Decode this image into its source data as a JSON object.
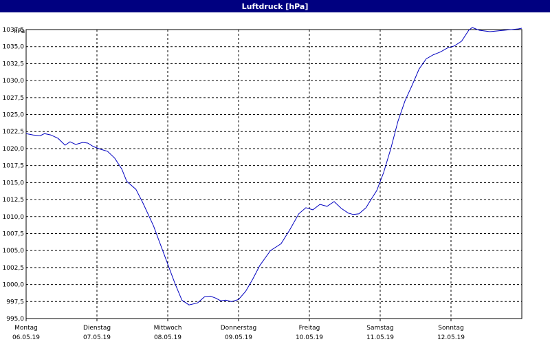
{
  "window": {
    "title": "Luftdruck [hPa]"
  },
  "chart_data": {
    "type": "line",
    "title": "Luftdruck [hPa]",
    "ylabel": "hPa",
    "xlabel": "",
    "ylim": [
      995.0,
      1037.5
    ],
    "yticks": [
      "995,0",
      "997,5",
      "1000,0",
      "1002,5",
      "1005,0",
      "1007,5",
      "1010,0",
      "1012,5",
      "1015,0",
      "1017,5",
      "1020,0",
      "1022,5",
      "1025,0",
      "1027,5",
      "1030,0",
      "1032,5",
      "1035,0",
      "1037,5"
    ],
    "xlim": [
      0,
      7
    ],
    "x_ticks": [
      {
        "day": "Montag",
        "date": "06.05.19"
      },
      {
        "day": "Dienstag",
        "date": "07.05.19"
      },
      {
        "day": "Mittwoch",
        "date": "08.05.19"
      },
      {
        "day": "Donnerstag",
        "date": "09.05.19"
      },
      {
        "day": "Freitag",
        "date": "10.05.19"
      },
      {
        "day": "Samstag",
        "date": "11.05.19"
      },
      {
        "day": "Sonntag",
        "date": "12.05.19"
      }
    ],
    "grid": true,
    "line_color": "#0000c0",
    "series": [
      {
        "x": [
          0.0,
          0.1,
          0.2,
          0.26,
          0.35,
          0.45,
          0.55,
          0.62,
          0.7,
          0.8,
          0.87,
          0.95,
          1.05,
          1.15,
          1.25,
          1.35,
          1.42,
          1.55,
          1.65,
          1.8,
          1.9,
          2.0,
          2.1,
          2.2,
          2.3,
          2.42,
          2.52,
          2.6,
          2.68,
          2.75,
          2.82,
          2.9,
          3.0,
          3.1,
          3.2,
          3.3,
          3.45,
          3.6,
          3.72,
          3.85,
          3.95,
          4.05,
          4.15,
          4.25,
          4.35,
          4.45,
          4.55,
          4.62,
          4.7,
          4.8,
          4.87,
          4.95,
          5.05,
          5.15,
          5.25,
          5.35,
          5.45,
          5.55,
          5.65,
          5.75,
          5.85,
          5.95,
          6.05,
          6.15,
          6.25,
          6.3,
          6.4,
          6.55,
          6.65,
          6.75,
          6.85,
          6.95,
          7.0
        ],
        "y": [
          1022.2,
          1022.0,
          1021.9,
          1022.2,
          1022.0,
          1021.5,
          1020.5,
          1021.0,
          1020.6,
          1020.9,
          1020.8,
          1020.3,
          1019.9,
          1019.6,
          1018.6,
          1017.0,
          1015.2,
          1014.0,
          1012.0,
          1008.6,
          1005.8,
          1003.0,
          1000.2,
          997.7,
          997.0,
          997.3,
          998.2,
          998.3,
          998.0,
          997.6,
          997.7,
          997.5,
          997.8,
          999.0,
          1000.8,
          1002.8,
          1005.0,
          1006.0,
          1008.0,
          1010.4,
          1011.3,
          1011.0,
          1011.8,
          1011.5,
          1012.2,
          1011.2,
          1010.5,
          1010.3,
          1010.4,
          1011.3,
          1012.5,
          1013.8,
          1016.5,
          1020.0,
          1024.0,
          1027.0,
          1029.3,
          1031.7,
          1033.2,
          1033.8,
          1034.2,
          1034.8,
          1035.1,
          1035.8,
          1037.4,
          1037.8,
          1037.4,
          1037.2,
          1037.3,
          1037.4,
          1037.5,
          1037.6,
          1037.7
        ]
      }
    ]
  }
}
